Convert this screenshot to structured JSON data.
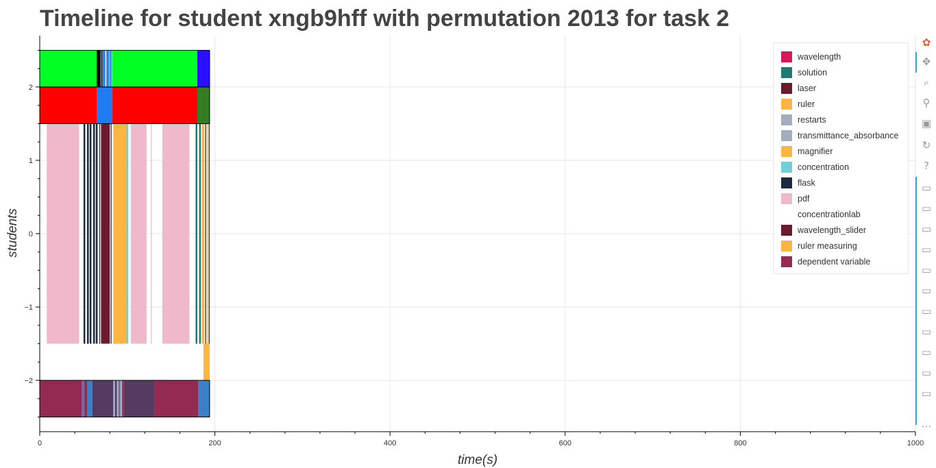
{
  "chart_data": {
    "type": "bar",
    "title": "Timeline for student xngb9hff with permutation 2013 for task 2",
    "xlabel": "time(s)",
    "ylabel": "students",
    "xlim": [
      0,
      1000
    ],
    "ylim": [
      -2.7,
      2.7
    ],
    "x_ticks": [
      0,
      200,
      400,
      600,
      800,
      1000
    ],
    "x_tick_labels": [
      "0",
      "200",
      "400",
      "600",
      "800",
      "1000"
    ],
    "y_ticks": [
      2,
      1,
      0,
      -1,
      -2
    ],
    "y_tick_labels": [
      "2",
      "1",
      "0",
      "−1",
      "−2"
    ],
    "grid": true,
    "legend_position": "top-right",
    "legend": [
      {
        "label": "wavelength",
        "color": "#d6185a"
      },
      {
        "label": "solution",
        "color": "#1f7a73"
      },
      {
        "label": "laser",
        "color": "#6b1a2e"
      },
      {
        "label": "ruler",
        "color": "#ffb640"
      },
      {
        "label": "restarts",
        "color": "#a3adbd"
      },
      {
        "label": "transmittance_absorbance",
        "color": "#a3adbd"
      },
      {
        "label": "magnifier",
        "color": "#ffb640"
      },
      {
        "label": "concentration",
        "color": "#6fd0d8"
      },
      {
        "label": "flask",
        "color": "#1c2a40"
      },
      {
        "label": "pdf",
        "color": "#efb8cb"
      },
      {
        "label": "concentrationlab",
        "color": "#ffffff"
      },
      {
        "label": "wavelength_slider",
        "color": "#6b1a2e"
      },
      {
        "label": "ruler measuring",
        "color": "#ffb640"
      },
      {
        "label": "dependent variable",
        "color": "#932a52"
      }
    ],
    "rows": [
      {
        "y_range": [
          2,
          2.5
        ],
        "segments": [
          {
            "x0": 0,
            "x1": 65,
            "color": "#00ff22"
          },
          {
            "x0": 65,
            "x1": 69,
            "color": "#000000"
          },
          {
            "x0": 69,
            "x1": 72,
            "color": "#555555"
          },
          {
            "x0": 72,
            "x1": 75,
            "color": "#2f86e8"
          },
          {
            "x0": 75,
            "x1": 76,
            "color": "#ffffff"
          },
          {
            "x0": 76,
            "x1": 79,
            "color": "#2f86e8"
          },
          {
            "x0": 79,
            "x1": 80,
            "color": "#6fd0d8"
          },
          {
            "x0": 80,
            "x1": 82,
            "color": "#2f86e8"
          },
          {
            "x0": 82,
            "x1": 83,
            "color": "#6fd0d8"
          },
          {
            "x0": 83,
            "x1": 180,
            "color": "#00ff22"
          },
          {
            "x0": 180,
            "x1": 194,
            "color": "#2b10ff"
          }
        ]
      },
      {
        "y_range": [
          1.5,
          2
        ],
        "segments": [
          {
            "x0": 0,
            "x1": 65,
            "color": "#ff0000"
          },
          {
            "x0": 65,
            "x1": 83,
            "color": "#1f7cf2"
          },
          {
            "x0": 83,
            "x1": 180,
            "color": "#ff0000"
          },
          {
            "x0": 180,
            "x1": 194,
            "color": "#347d22"
          }
        ]
      },
      {
        "y_range": [
          -1.5,
          1.5
        ],
        "segments": [
          {
            "x0": 8,
            "x1": 45,
            "color": "#efb8cb"
          },
          {
            "x0": 50,
            "x1": 52,
            "color": "#1c2a40"
          },
          {
            "x0": 54,
            "x1": 56,
            "color": "#1c2a40"
          },
          {
            "x0": 57,
            "x1": 59,
            "color": "#1c2a40"
          },
          {
            "x0": 61,
            "x1": 63,
            "color": "#1c2a40"
          },
          {
            "x0": 64,
            "x1": 66,
            "color": "#1c2a40"
          },
          {
            "x0": 68,
            "x1": 69,
            "color": "#1c2a40"
          },
          {
            "x0": 70,
            "x1": 80,
            "color": "#6b1a2e"
          },
          {
            "x0": 81,
            "x1": 82,
            "color": "#1c2a40"
          },
          {
            "x0": 84,
            "x1": 99,
            "color": "#ffb640"
          },
          {
            "x0": 99,
            "x1": 101,
            "color": "#6fd0d8"
          },
          {
            "x0": 104,
            "x1": 122,
            "color": "#efb8cb"
          },
          {
            "x0": 127,
            "x1": 128,
            "color": "#efb8cb"
          },
          {
            "x0": 140,
            "x1": 171,
            "color": "#efb8cb"
          },
          {
            "x0": 178,
            "x1": 180,
            "color": "#1f7a73"
          },
          {
            "x0": 182,
            "x1": 184,
            "color": "#1f7a73"
          },
          {
            "x0": 185,
            "x1": 188,
            "color": "#ffb640"
          },
          {
            "x0": 189,
            "x1": 190,
            "color": "#1c2a40"
          },
          {
            "x0": 191,
            "x1": 192,
            "color": "#ffb640"
          },
          {
            "x0": 193,
            "x1": 194,
            "color": "#1c2a40"
          }
        ]
      },
      {
        "y_range": [
          -2,
          -1.5
        ],
        "segments": [
          {
            "x0": 187,
            "x1": 194,
            "color": "#ffb640"
          }
        ]
      },
      {
        "y_range": [
          -2.5,
          -2
        ],
        "segments": [
          {
            "x0": 0,
            "x1": 48,
            "color": "#932a52"
          },
          {
            "x0": 48,
            "x1": 51,
            "color": "#6d6aa0"
          },
          {
            "x0": 51,
            "x1": 54,
            "color": "#932a52"
          },
          {
            "x0": 54,
            "x1": 60,
            "color": "#3c7fc4"
          },
          {
            "x0": 60,
            "x1": 84,
            "color": "#553a62"
          },
          {
            "x0": 84,
            "x1": 86,
            "color": "#a3adbd"
          },
          {
            "x0": 86,
            "x1": 88,
            "color": "#553a62"
          },
          {
            "x0": 88,
            "x1": 90,
            "color": "#a3adbd"
          },
          {
            "x0": 90,
            "x1": 92,
            "color": "#6d6aa0"
          },
          {
            "x0": 92,
            "x1": 94,
            "color": "#a3adbd"
          },
          {
            "x0": 94,
            "x1": 96,
            "color": "#932a52"
          },
          {
            "x0": 96,
            "x1": 131,
            "color": "#553a62"
          },
          {
            "x0": 131,
            "x1": 181,
            "color": "#932a52"
          },
          {
            "x0": 181,
            "x1": 194,
            "color": "#3c7fc4"
          }
        ]
      }
    ]
  },
  "toolbar": {
    "tools": [
      {
        "name": "bokeh-logo-icon",
        "glyph": "✿",
        "color": "#e55b2d"
      },
      {
        "name": "pan-icon",
        "glyph": "✥",
        "color": "#999999"
      },
      {
        "name": "box-zoom-icon",
        "glyph": "⌕",
        "color": "#999999"
      },
      {
        "name": "wheel-zoom-icon",
        "glyph": "⚲",
        "color": "#999999"
      },
      {
        "name": "save-icon",
        "glyph": "▣",
        "color": "#999999"
      },
      {
        "name": "reset-icon",
        "glyph": "↻",
        "color": "#999999"
      },
      {
        "name": "help-icon",
        "glyph": "?",
        "color": "#999999"
      },
      {
        "name": "hover-icon",
        "glyph": "▭",
        "color": "#999999"
      },
      {
        "name": "hover-icon",
        "glyph": "▭",
        "color": "#999999"
      },
      {
        "name": "hover-icon",
        "glyph": "▭",
        "color": "#999999"
      },
      {
        "name": "hover-icon",
        "glyph": "▭",
        "color": "#999999"
      },
      {
        "name": "hover-icon",
        "glyph": "▭",
        "color": "#999999"
      },
      {
        "name": "hover-icon",
        "glyph": "▭",
        "color": "#999999"
      },
      {
        "name": "hover-icon",
        "glyph": "▭",
        "color": "#999999"
      },
      {
        "name": "hover-icon",
        "glyph": "▭",
        "color": "#999999"
      },
      {
        "name": "hover-icon",
        "glyph": "▭",
        "color": "#999999"
      },
      {
        "name": "hover-icon",
        "glyph": "▭",
        "color": "#999999"
      },
      {
        "name": "hover-icon",
        "glyph": "▭",
        "color": "#999999"
      },
      {
        "name": "more-icon",
        "glyph": "⋯",
        "color": "#999999"
      }
    ]
  }
}
